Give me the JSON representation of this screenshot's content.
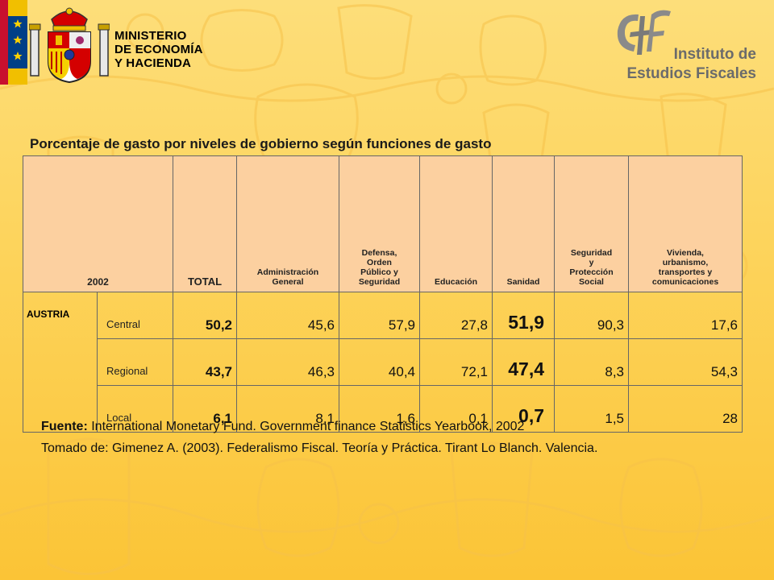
{
  "header": {
    "ministry_lines": [
      "MINISTERIO",
      "DE ECONOMÍA",
      "Y HACIENDA"
    ],
    "institute_lines": [
      "Instituto de",
      "Estudios Fiscales"
    ]
  },
  "title": "Porcentaje de gasto por niveles de gobierno según funciones de gasto",
  "table": {
    "headers": {
      "year": "2002",
      "total": "TOTAL",
      "admin": [
        "Administración",
        "General"
      ],
      "defensa": [
        "Defensa,",
        "Orden",
        "Público y",
        "Seguridad"
      ],
      "educacion": "Educación",
      "sanidad": "Sanidad",
      "seguridad_social": [
        "Seguridad",
        "y",
        "Protección",
        "Social"
      ],
      "vivienda": [
        "Vivienda,",
        "urbanismo,",
        "transportes  y",
        "comunicaciones"
      ]
    },
    "country": "AUSTRIA",
    "rows": [
      {
        "level": "Central",
        "total": "50,2",
        "admin": "45,6",
        "defensa": "57,9",
        "educacion": "27,8",
        "sanidad": "51,9",
        "seguridad_social": "90,3",
        "vivienda": "17,6"
      },
      {
        "level": "Regional",
        "total": "43,7",
        "admin": "46,3",
        "defensa": "40,4",
        "educacion": "72,1",
        "sanidad": "47,4",
        "seguridad_social": "8,3",
        "vivienda": "54,3"
      },
      {
        "level": "Local",
        "total": "6,1",
        "admin": "8,1",
        "defensa": "1,6",
        "educacion": "0,1",
        "sanidad": "0,7",
        "seguridad_social": "1,5",
        "vivienda": "28"
      }
    ]
  },
  "sources": {
    "fuente_label": "Fuente:",
    "fuente_text": " International Monetary Fund. Government finance Statistics Yearbook, 2002",
    "tomado_text": "Tomado de: Gimenez A. (2003). Federalismo Fiscal. Teoría y Práctica. Tirant Lo Blanch. Valencia."
  },
  "colors": {
    "header_cell": "#fcd0a0",
    "background_top": "#fdde7a",
    "background_bottom": "#fbc436",
    "institute_text": "#6b6b6b"
  }
}
